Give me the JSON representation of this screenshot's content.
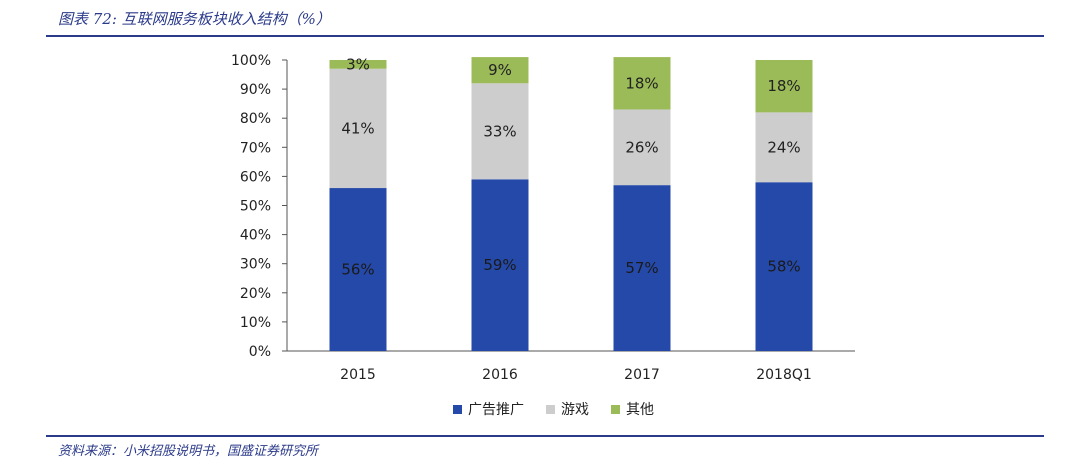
{
  "title": "图表 72: 互联网服务板块收入结构（%）",
  "source": "资料来源：小米招股说明书，国盛证券研究所",
  "chart_data": {
    "type": "bar",
    "stacked": true,
    "categories": [
      "2015",
      "2016",
      "2017",
      "2018Q1"
    ],
    "series": [
      {
        "name": "广告推广",
        "color": "#2549a8",
        "values": [
          56,
          59,
          57,
          58
        ]
      },
      {
        "name": "游戏",
        "color": "#cdcdcd",
        "values": [
          41,
          33,
          26,
          24
        ]
      },
      {
        "name": "其他",
        "color": "#9bbb59",
        "values": [
          3,
          9,
          18,
          18
        ]
      }
    ],
    "labels": [
      [
        "56%",
        "59%",
        "57%",
        "58%"
      ],
      [
        "41%",
        "33%",
        "26%",
        "24%"
      ],
      [
        "3%",
        "9%",
        "18%",
        "18%"
      ]
    ],
    "yticks": [
      "0%",
      "10%",
      "20%",
      "30%",
      "40%",
      "50%",
      "60%",
      "70%",
      "80%",
      "90%",
      "100%"
    ],
    "ylim": [
      0,
      100
    ],
    "grid": false,
    "legend_position": "bottom"
  }
}
